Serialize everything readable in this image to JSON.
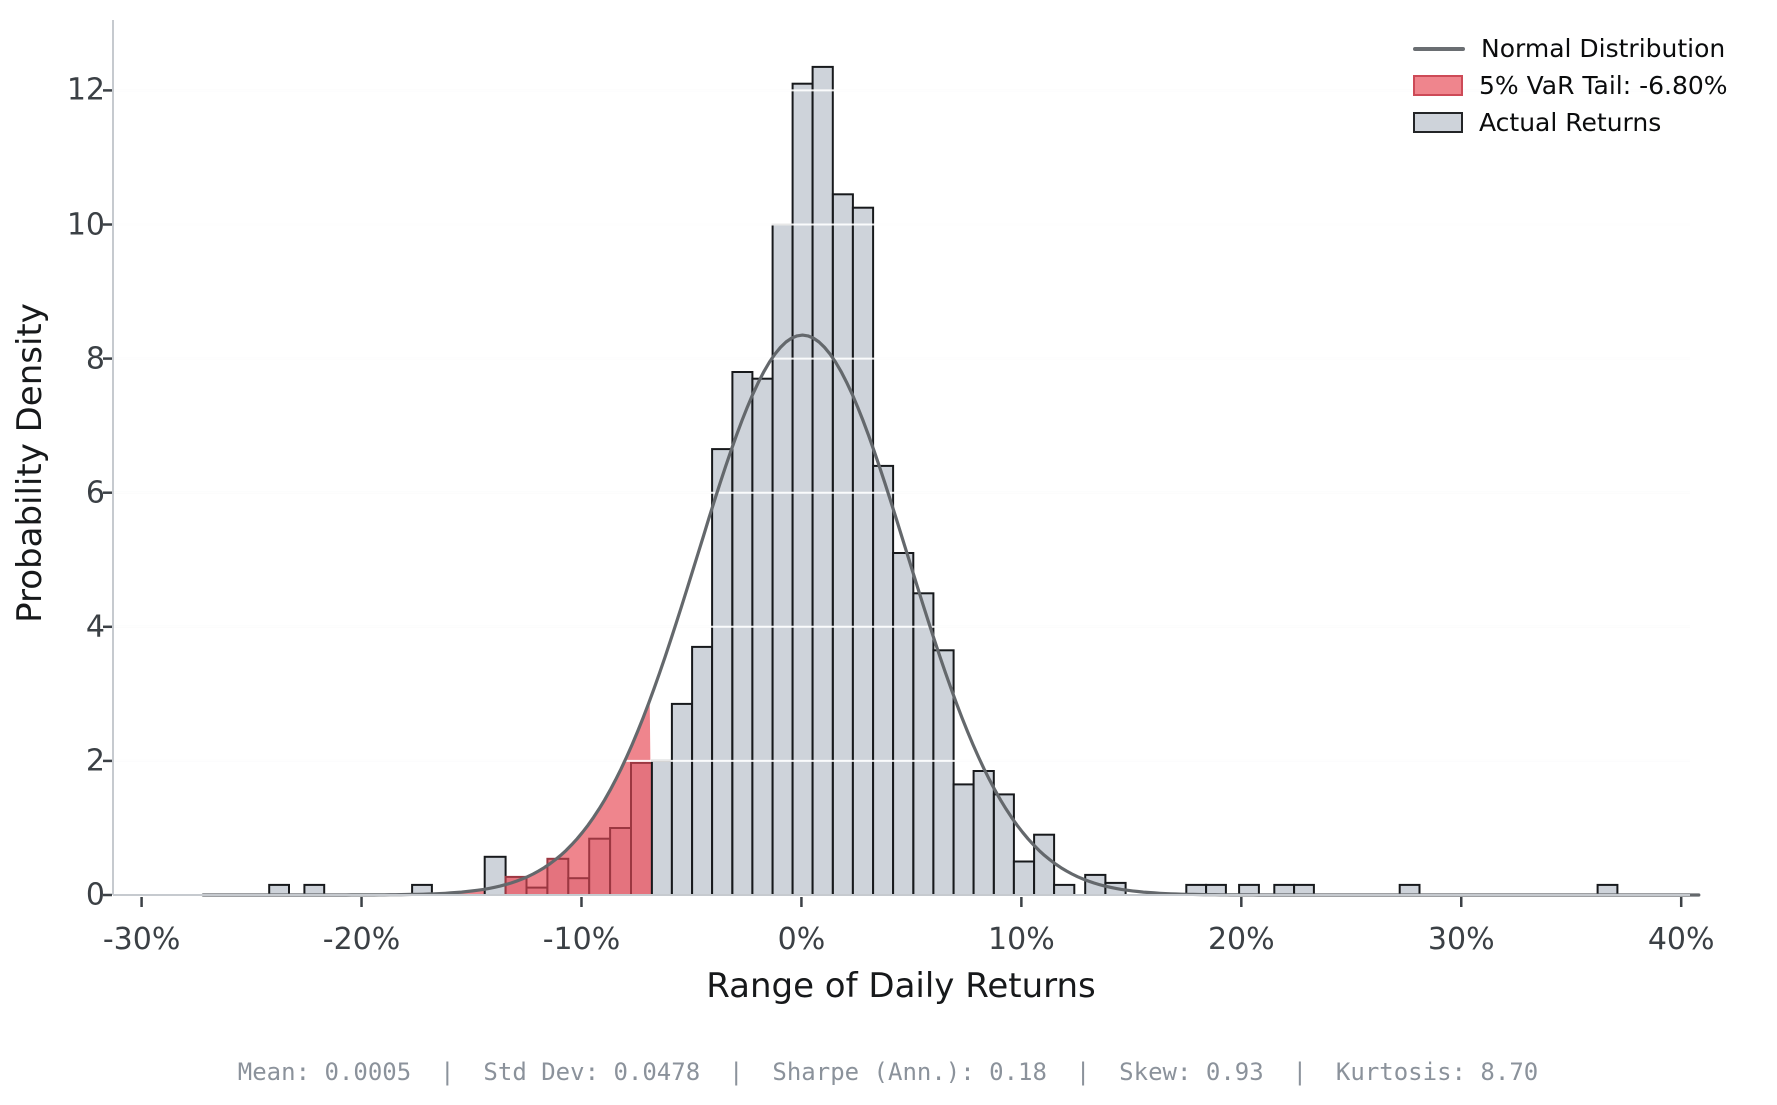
{
  "chart_data": {
    "type": "histogram",
    "xlabel": "Range of Daily Returns",
    "ylabel": "Probability Density",
    "x_ticks": [
      {
        "value": -30,
        "label": "-30%"
      },
      {
        "value": -20,
        "label": "-20%"
      },
      {
        "value": -10,
        "label": "-10%"
      },
      {
        "value": 0,
        "label": "0%"
      },
      {
        "value": 10,
        "label": "10%"
      },
      {
        "value": 20,
        "label": "20%"
      },
      {
        "value": 30,
        "label": "30%"
      },
      {
        "value": 40,
        "label": "40%"
      }
    ],
    "y_ticks": [
      0,
      2,
      4,
      6,
      8,
      10,
      12
    ],
    "xlim": [
      -31.3,
      40.4
    ],
    "ylim": [
      0,
      13.05
    ],
    "grid": true,
    "legend_position": "top-right",
    "legend": [
      {
        "label": "Normal Distribution",
        "type": "line",
        "color": "#6a6e72"
      },
      {
        "label": "5% VaR Tail: -6.80%",
        "type": "patch",
        "fill": "#ef858d",
        "stroke": "#cd4a57"
      },
      {
        "label": "Actual Returns",
        "type": "patch",
        "fill": "#ced3da",
        "stroke": "#232527"
      }
    ],
    "normal_curve": {
      "mean_pct": 0.05,
      "std_pct": 4.78,
      "peak_density": 8.35,
      "x_start": -27.2,
      "x_end": 41.0
    },
    "var_tail": {
      "level": "5%",
      "threshold_pct": -6.8
    },
    "bars": [
      {
        "x1": -24.2,
        "x2": -23.3,
        "h": 0.15,
        "tail": false
      },
      {
        "x1": -22.6,
        "x2": -21.7,
        "h": 0.15,
        "tail": false
      },
      {
        "x1": -17.7,
        "x2": -16.8,
        "h": 0.15,
        "tail": false
      },
      {
        "x1": -14.4,
        "x2": -13.45,
        "h": 0.57,
        "tail": false
      },
      {
        "x1": -13.45,
        "x2": -12.5,
        "h": 0.27,
        "tail": true
      },
      {
        "x1": -12.5,
        "x2": -11.55,
        "h": 0.11,
        "tail": true
      },
      {
        "x1": -11.55,
        "x2": -10.6,
        "h": 0.54,
        "tail": true
      },
      {
        "x1": -10.6,
        "x2": -9.65,
        "h": 0.25,
        "tail": true
      },
      {
        "x1": -9.65,
        "x2": -8.7,
        "h": 0.84,
        "tail": true
      },
      {
        "x1": -8.7,
        "x2": -7.75,
        "h": 1.0,
        "tail": true
      },
      {
        "x1": -7.75,
        "x2": -6.8,
        "h": 1.97,
        "tail": true
      },
      {
        "x1": -6.8,
        "x2": -5.89,
        "h": 2.0,
        "tail": false
      },
      {
        "x1": -5.89,
        "x2": -4.97,
        "h": 2.85,
        "tail": false
      },
      {
        "x1": -4.97,
        "x2": -4.06,
        "h": 3.7,
        "tail": false
      },
      {
        "x1": -4.06,
        "x2": -3.14,
        "h": 6.65,
        "tail": false
      },
      {
        "x1": -3.14,
        "x2": -2.23,
        "h": 7.8,
        "tail": false
      },
      {
        "x1": -2.23,
        "x2": -1.31,
        "h": 7.7,
        "tail": false
      },
      {
        "x1": -1.31,
        "x2": -0.4,
        "h": 10.0,
        "tail": false
      },
      {
        "x1": -0.4,
        "x2": 0.51,
        "h": 12.1,
        "tail": false
      },
      {
        "x1": 0.51,
        "x2": 1.43,
        "h": 12.35,
        "tail": false
      },
      {
        "x1": 1.43,
        "x2": 2.34,
        "h": 10.45,
        "tail": false
      },
      {
        "x1": 2.34,
        "x2": 3.26,
        "h": 10.25,
        "tail": false
      },
      {
        "x1": 3.26,
        "x2": 4.17,
        "h": 6.4,
        "tail": false
      },
      {
        "x1": 4.17,
        "x2": 5.09,
        "h": 5.1,
        "tail": false
      },
      {
        "x1": 5.09,
        "x2": 6.0,
        "h": 4.5,
        "tail": false
      },
      {
        "x1": 6.0,
        "x2": 6.92,
        "h": 3.65,
        "tail": false
      },
      {
        "x1": 6.92,
        "x2": 7.83,
        "h": 1.65,
        "tail": false
      },
      {
        "x1": 7.83,
        "x2": 8.75,
        "h": 1.85,
        "tail": false
      },
      {
        "x1": 8.75,
        "x2": 9.66,
        "h": 1.5,
        "tail": false
      },
      {
        "x1": 9.66,
        "x2": 10.58,
        "h": 0.5,
        "tail": false
      },
      {
        "x1": 10.58,
        "x2": 11.49,
        "h": 0.9,
        "tail": false
      },
      {
        "x1": 11.49,
        "x2": 12.41,
        "h": 0.15,
        "tail": false
      },
      {
        "x1": 12.9,
        "x2": 13.82,
        "h": 0.3,
        "tail": false
      },
      {
        "x1": 13.82,
        "x2": 14.74,
        "h": 0.18,
        "tail": false
      },
      {
        "x1": 17.5,
        "x2": 18.4,
        "h": 0.15,
        "tail": false
      },
      {
        "x1": 18.4,
        "x2": 19.3,
        "h": 0.15,
        "tail": false
      },
      {
        "x1": 19.9,
        "x2": 20.8,
        "h": 0.15,
        "tail": false
      },
      {
        "x1": 21.5,
        "x2": 22.4,
        "h": 0.15,
        "tail": false
      },
      {
        "x1": 22.4,
        "x2": 23.3,
        "h": 0.15,
        "tail": false
      },
      {
        "x1": 27.2,
        "x2": 28.1,
        "h": 0.15,
        "tail": false
      },
      {
        "x1": 36.2,
        "x2": 37.1,
        "h": 0.15,
        "tail": false
      }
    ],
    "stats": {
      "mean": "0.0005",
      "std_dev": "0.0478",
      "sharpe_ann": "0.18",
      "skew": "0.93",
      "kurtosis": "8.70"
    },
    "stats_line": "Mean: 0.0005  |  Std Dev: 0.0478  |  Sharpe (Ann.): 0.18  |  Skew: 0.93  |  Kurtosis: 8.70"
  },
  "colors": {
    "background": "#ffffff",
    "bar_fill": "#ced3da",
    "bar_edge": "#17191c",
    "tail_bar_fill": "#e4737e",
    "tail_bar_edge": "#9c3741",
    "var_area_fill": "#ef858d",
    "curve": "#64686c",
    "grid_base": "#edeff1",
    "grid_over_bars": "rgba(255,255,255,0.9)",
    "spine": "#c6cacf",
    "tick_mark": "#3c4146"
  }
}
